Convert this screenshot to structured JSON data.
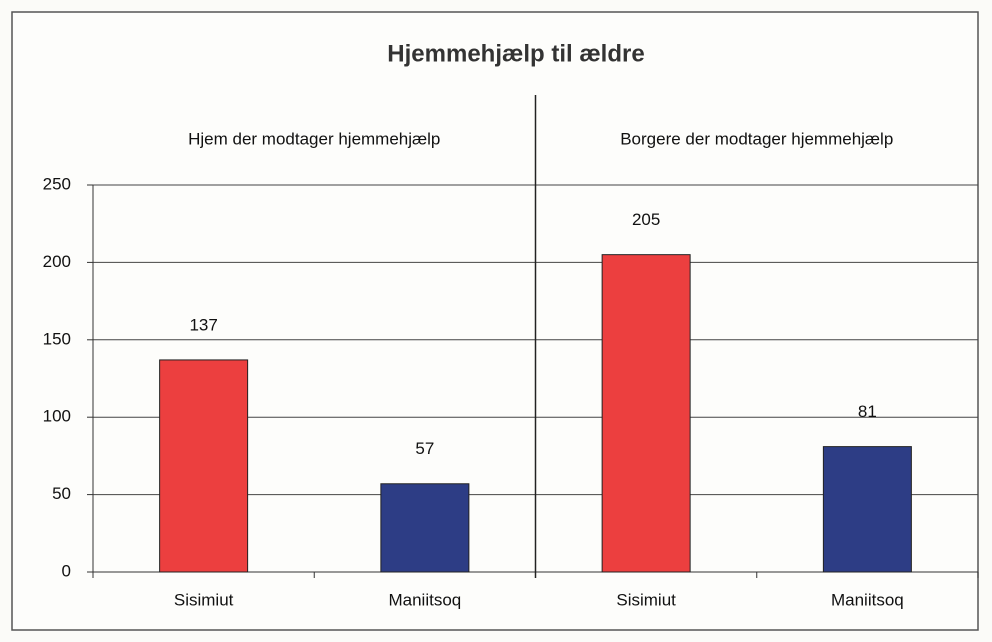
{
  "chart_data": {
    "type": "bar",
    "title": "Hjemmehjælp til ældre",
    "groups": [
      "Hjem der modtager hjemmehjælp",
      "Borgere der modtager hjemmehjælp"
    ],
    "categories": [
      "Sisimiut",
      "Maniitsoq",
      "Sisimiut",
      "Maniitsoq"
    ],
    "values": [
      137,
      57,
      205,
      81
    ],
    "colors": [
      "#ec3f3f",
      "#2d3d85",
      "#ec3f3f",
      "#2d3d85"
    ],
    "ylim": [
      0,
      250
    ],
    "yticks": [
      0,
      50,
      100,
      150,
      200,
      250
    ],
    "grid": true
  }
}
